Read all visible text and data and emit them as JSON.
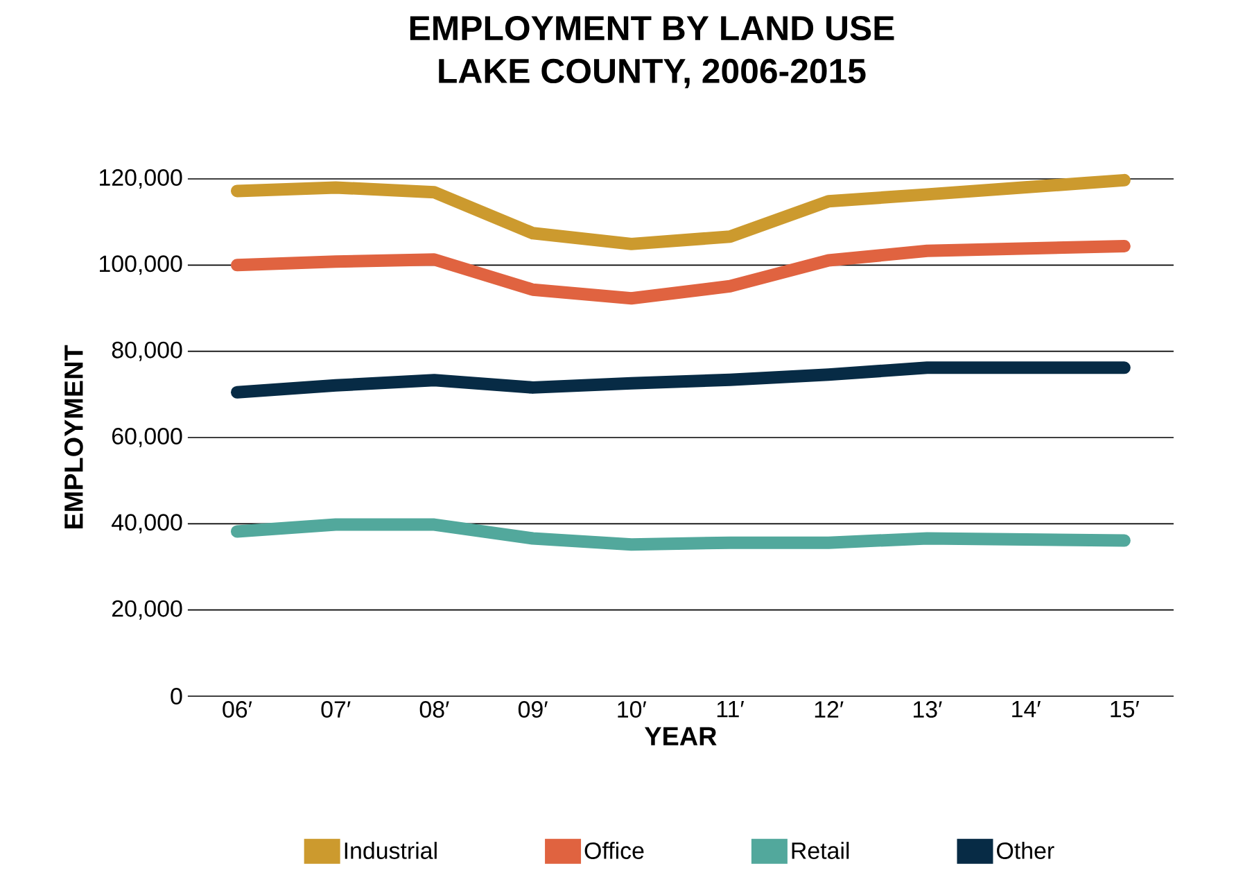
{
  "chart_data": {
    "type": "line",
    "title": "EMPLOYMENT BY LAND USE",
    "subtitle": "LAKE COUNTY, 2006-2015",
    "xlabel": "YEAR",
    "ylabel": "EMPLOYMENT",
    "categories": [
      "06′",
      "07′",
      "08′",
      "09′",
      "10′",
      "11′",
      "12′",
      "13′",
      "14′",
      "15′"
    ],
    "ylim": [
      0,
      120000
    ],
    "yticks": [
      {
        "value": 0,
        "label": "0"
      },
      {
        "value": 20000,
        "label": "20,000"
      },
      {
        "value": 40000,
        "label": "40,000"
      },
      {
        "value": 60000,
        "label": "60,000"
      },
      {
        "value": 80000,
        "label": "80,000"
      },
      {
        "value": 100000,
        "label": "100,000"
      },
      {
        "value": 120000,
        "label": "120,000"
      }
    ],
    "grid": "y",
    "legend": "bottom",
    "marker": "none",
    "line_style": "solid",
    "series": [
      {
        "name": "Industrial",
        "color": "#cc9a2e",
        "values": [
          117200,
          118000,
          116900,
          107400,
          104900,
          106600,
          114800,
          116400,
          null,
          119700
        ]
      },
      {
        "name": "Office",
        "color": "#e06340",
        "values": [
          100000,
          100800,
          101300,
          94300,
          92300,
          95100,
          101100,
          103300,
          null,
          104400
        ]
      },
      {
        "name": "Retail",
        "color": "#52a89c",
        "values": [
          38200,
          39800,
          39800,
          36600,
          35200,
          35600,
          35600,
          36600,
          null,
          36100
        ]
      },
      {
        "name": "Other",
        "color": "#072b45",
        "values": [
          70500,
          72100,
          73300,
          71600,
          72600,
          73400,
          74600,
          76200,
          null,
          76200
        ]
      }
    ]
  }
}
